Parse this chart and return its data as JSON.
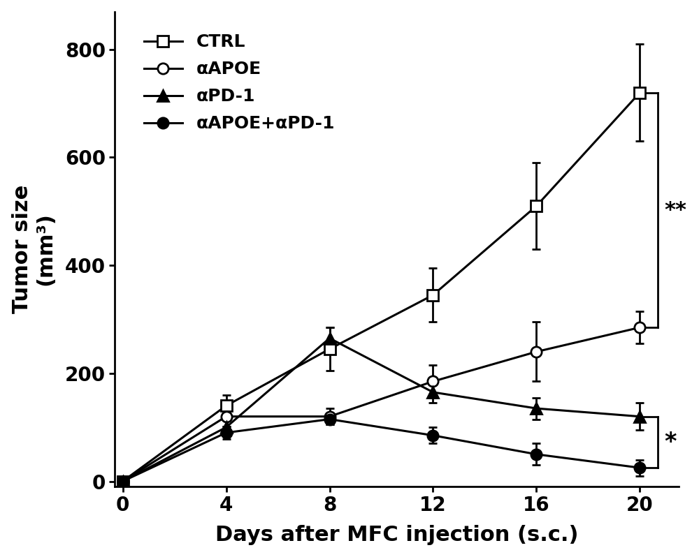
{
  "x": [
    0,
    4,
    8,
    12,
    16,
    20
  ],
  "series": [
    {
      "key": "CTRL",
      "y": [
        0,
        140,
        245,
        345,
        510,
        720
      ],
      "yerr": [
        0,
        20,
        40,
        50,
        80,
        90
      ],
      "marker": "s",
      "markerfacecolor": "white",
      "markeredgecolor": "black",
      "label": "CTRL"
    },
    {
      "key": "aAPOE",
      "y": [
        0,
        120,
        120,
        185,
        240,
        285
      ],
      "yerr": [
        0,
        18,
        15,
        30,
        55,
        30
      ],
      "marker": "o",
      "markerfacecolor": "white",
      "markeredgecolor": "black",
      "label": "αAPOE"
    },
    {
      "key": "aPD1",
      "y": [
        0,
        100,
        265,
        165,
        135,
        120
      ],
      "yerr": [
        0,
        15,
        20,
        20,
        20,
        25
      ],
      "marker": "^",
      "markerfacecolor": "black",
      "markeredgecolor": "black",
      "label": "αPD-1"
    },
    {
      "key": "aAPOE_aPD1",
      "y": [
        0,
        90,
        115,
        85,
        50,
        25
      ],
      "yerr": [
        0,
        12,
        10,
        15,
        20,
        15
      ],
      "marker": "o",
      "markerfacecolor": "black",
      "markeredgecolor": "black",
      "label": "αAPOE+αPD-1"
    }
  ],
  "xlabel": "Days after MFC injection (s.c.)",
  "ylabel_line1": "Tumor size",
  "ylabel_line2": "(mm³)",
  "xlim": [
    -0.3,
    21.5
  ],
  "ylim": [
    -10,
    870
  ],
  "yticks": [
    0,
    200,
    400,
    600,
    800
  ],
  "xticks": [
    0,
    4,
    8,
    12,
    16,
    20
  ],
  "linewidth": 2.2,
  "markersize": 11,
  "markeredgewidth": 2.0,
  "line_color": "black",
  "bracket1_ytop": 720,
  "bracket1_ybot": 285,
  "bracket1_ymid": 502,
  "bracket1_label": "**",
  "bracket2_ytop": 120,
  "bracket2_ybot": 25,
  "bracket2_ymid": 72,
  "bracket2_label": "*",
  "background_color": "#ffffff",
  "font_color": "#000000"
}
